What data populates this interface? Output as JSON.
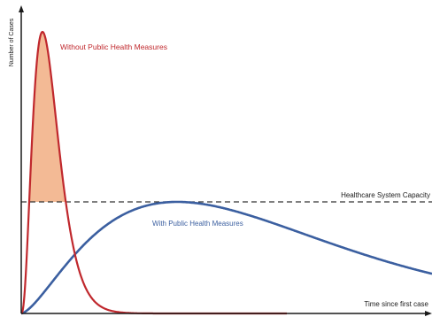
{
  "diagram": {
    "y_axis_label": "Number of Cases",
    "x_axis_label": "Time since first case",
    "capacity_label": "Healthcare System Capacity",
    "curve_without_label": "Without Public Health Measures",
    "curve_with_label": "With Public Health Measures"
  },
  "colors": {
    "axis": "#1a1a1a",
    "capacity_line": "#333333",
    "curve_without": "#c0282d",
    "curve_with": "#3b5fa0",
    "excess_fill": "#f2b38a",
    "label_without": "#c0282d",
    "label_with": "#3b5fa0",
    "label_dark": "#1a1a1a"
  }
}
